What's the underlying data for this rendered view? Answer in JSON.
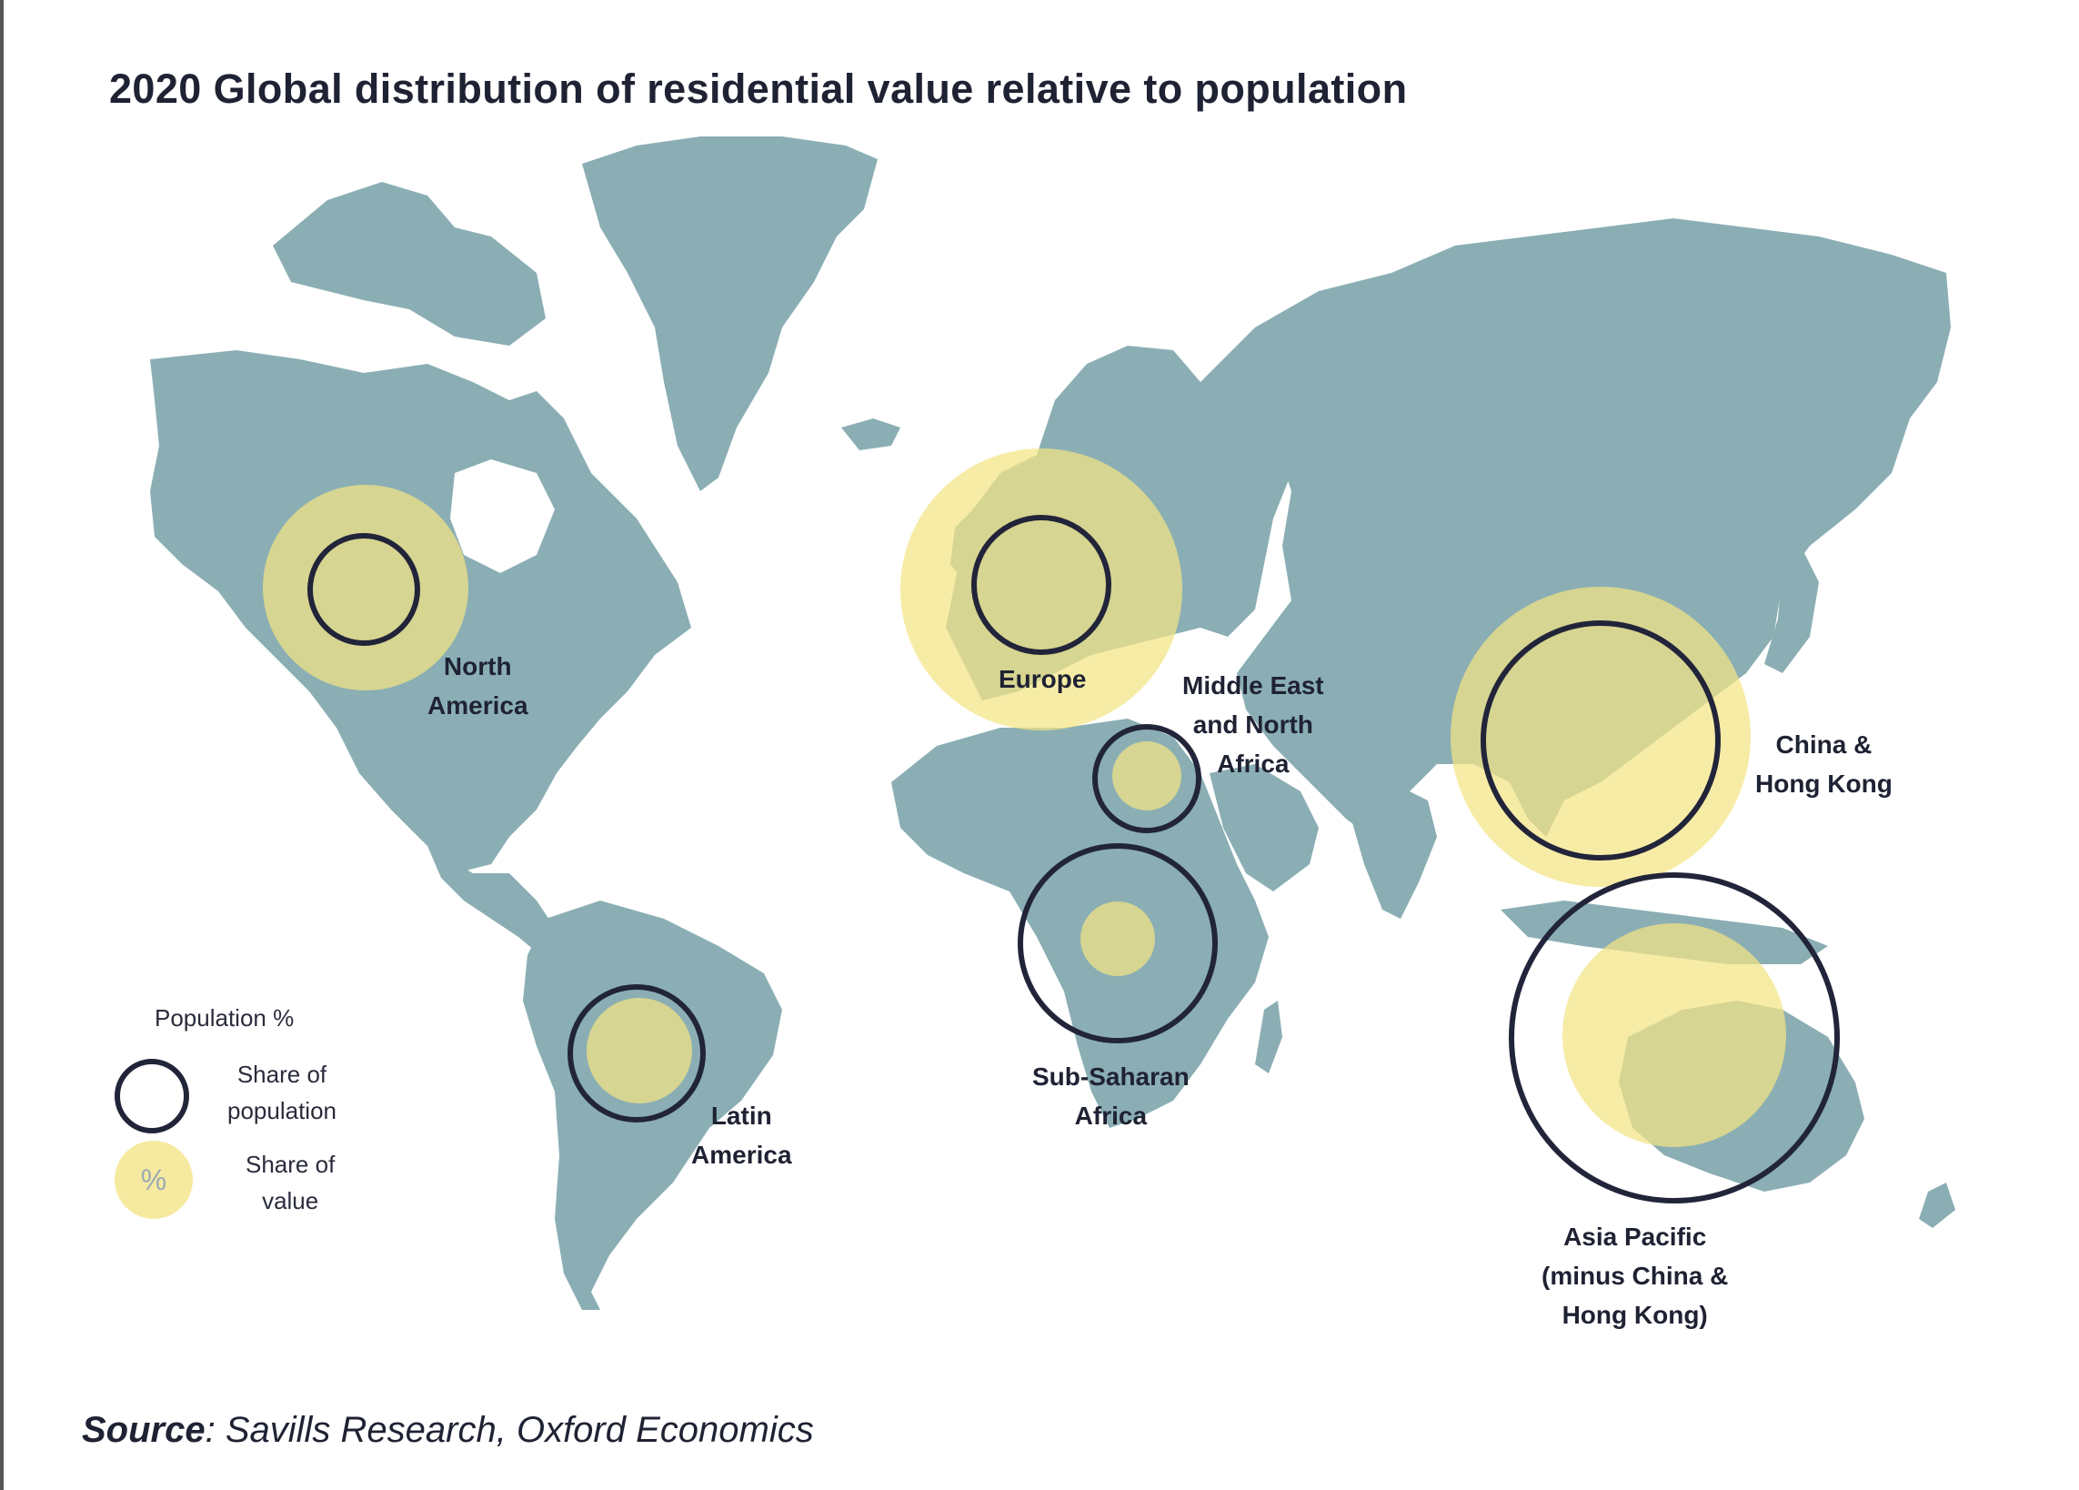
{
  "title": "2020 Global distribution of residential value relative to population",
  "regions": [
    {
      "name": "North\nAmerica"
    },
    {
      "name": "Europe"
    },
    {
      "name": "Middle East\nand North\nAfrica"
    },
    {
      "name": "China &\nHong Kong"
    },
    {
      "name": "Sub-Saharan\nAfrica"
    },
    {
      "name": "Latin\nAmerica"
    },
    {
      "name": "Asia Pacific\n(minus China &\nHong Kong)"
    }
  ],
  "legend": {
    "title": "Population %",
    "population_label": "Share of\npopulation",
    "value_label": "Share of\nvalue",
    "value_symbol": "%"
  },
  "source": {
    "prefix": "Source",
    "text": ": Savills Research, Oxford Economics"
  },
  "colors": {
    "land": "#8aaeb4",
    "value_circle": "#f4e483",
    "population_circle": "#22243a"
  }
}
